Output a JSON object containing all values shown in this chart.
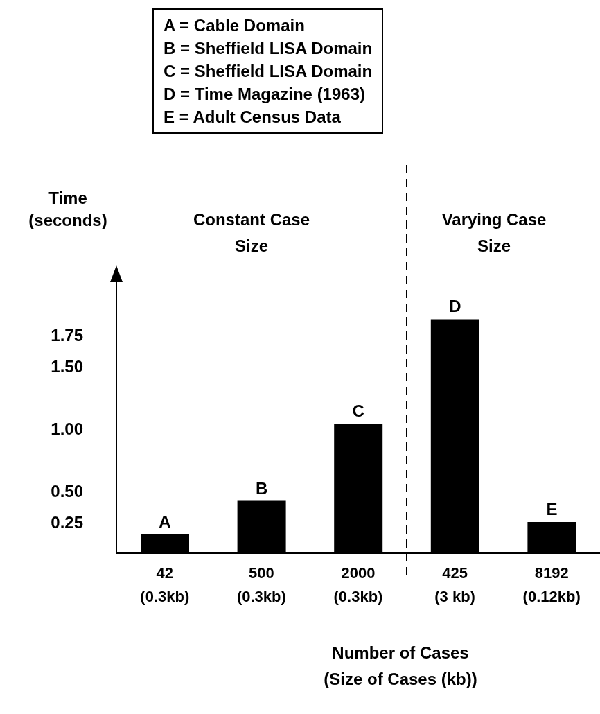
{
  "chart_data": {
    "type": "bar",
    "xlabel": "Number of Cases\n(Size of Cases (kb))",
    "ylabel": "Time\n(seconds)",
    "categories": [
      "42\n(0.3kb)",
      "500\n(0.3kb)",
      "2000\n(0.3kb)",
      "425\n(3 kb)",
      "8192\n(0.12kb)"
    ],
    "values": [
      0.15,
      0.42,
      1.04,
      1.88,
      0.25
    ],
    "value_labels": [
      "A",
      "B",
      "C",
      "D",
      "E"
    ],
    "color": "#000000",
    "ylim": [
      0,
      2.2
    ],
    "yticks": [
      0.25,
      {
        "value": 0.5,
        "label": "0.50"
      },
      {
        "value": 1,
        "label": "1.00"
      },
      {
        "value": 1.5,
        "label": "1.50"
      },
      1.75
    ],
    "annotations": [
      "A = Cable Domain",
      "B = Sheffield LISA Domain",
      "C = Sheffield LISA Domain",
      "D = Time Magazine (1963)",
      "E = Adult Census Data",
      "Constant Case\nSize",
      "Varying Case\nSize"
    ]
  }
}
